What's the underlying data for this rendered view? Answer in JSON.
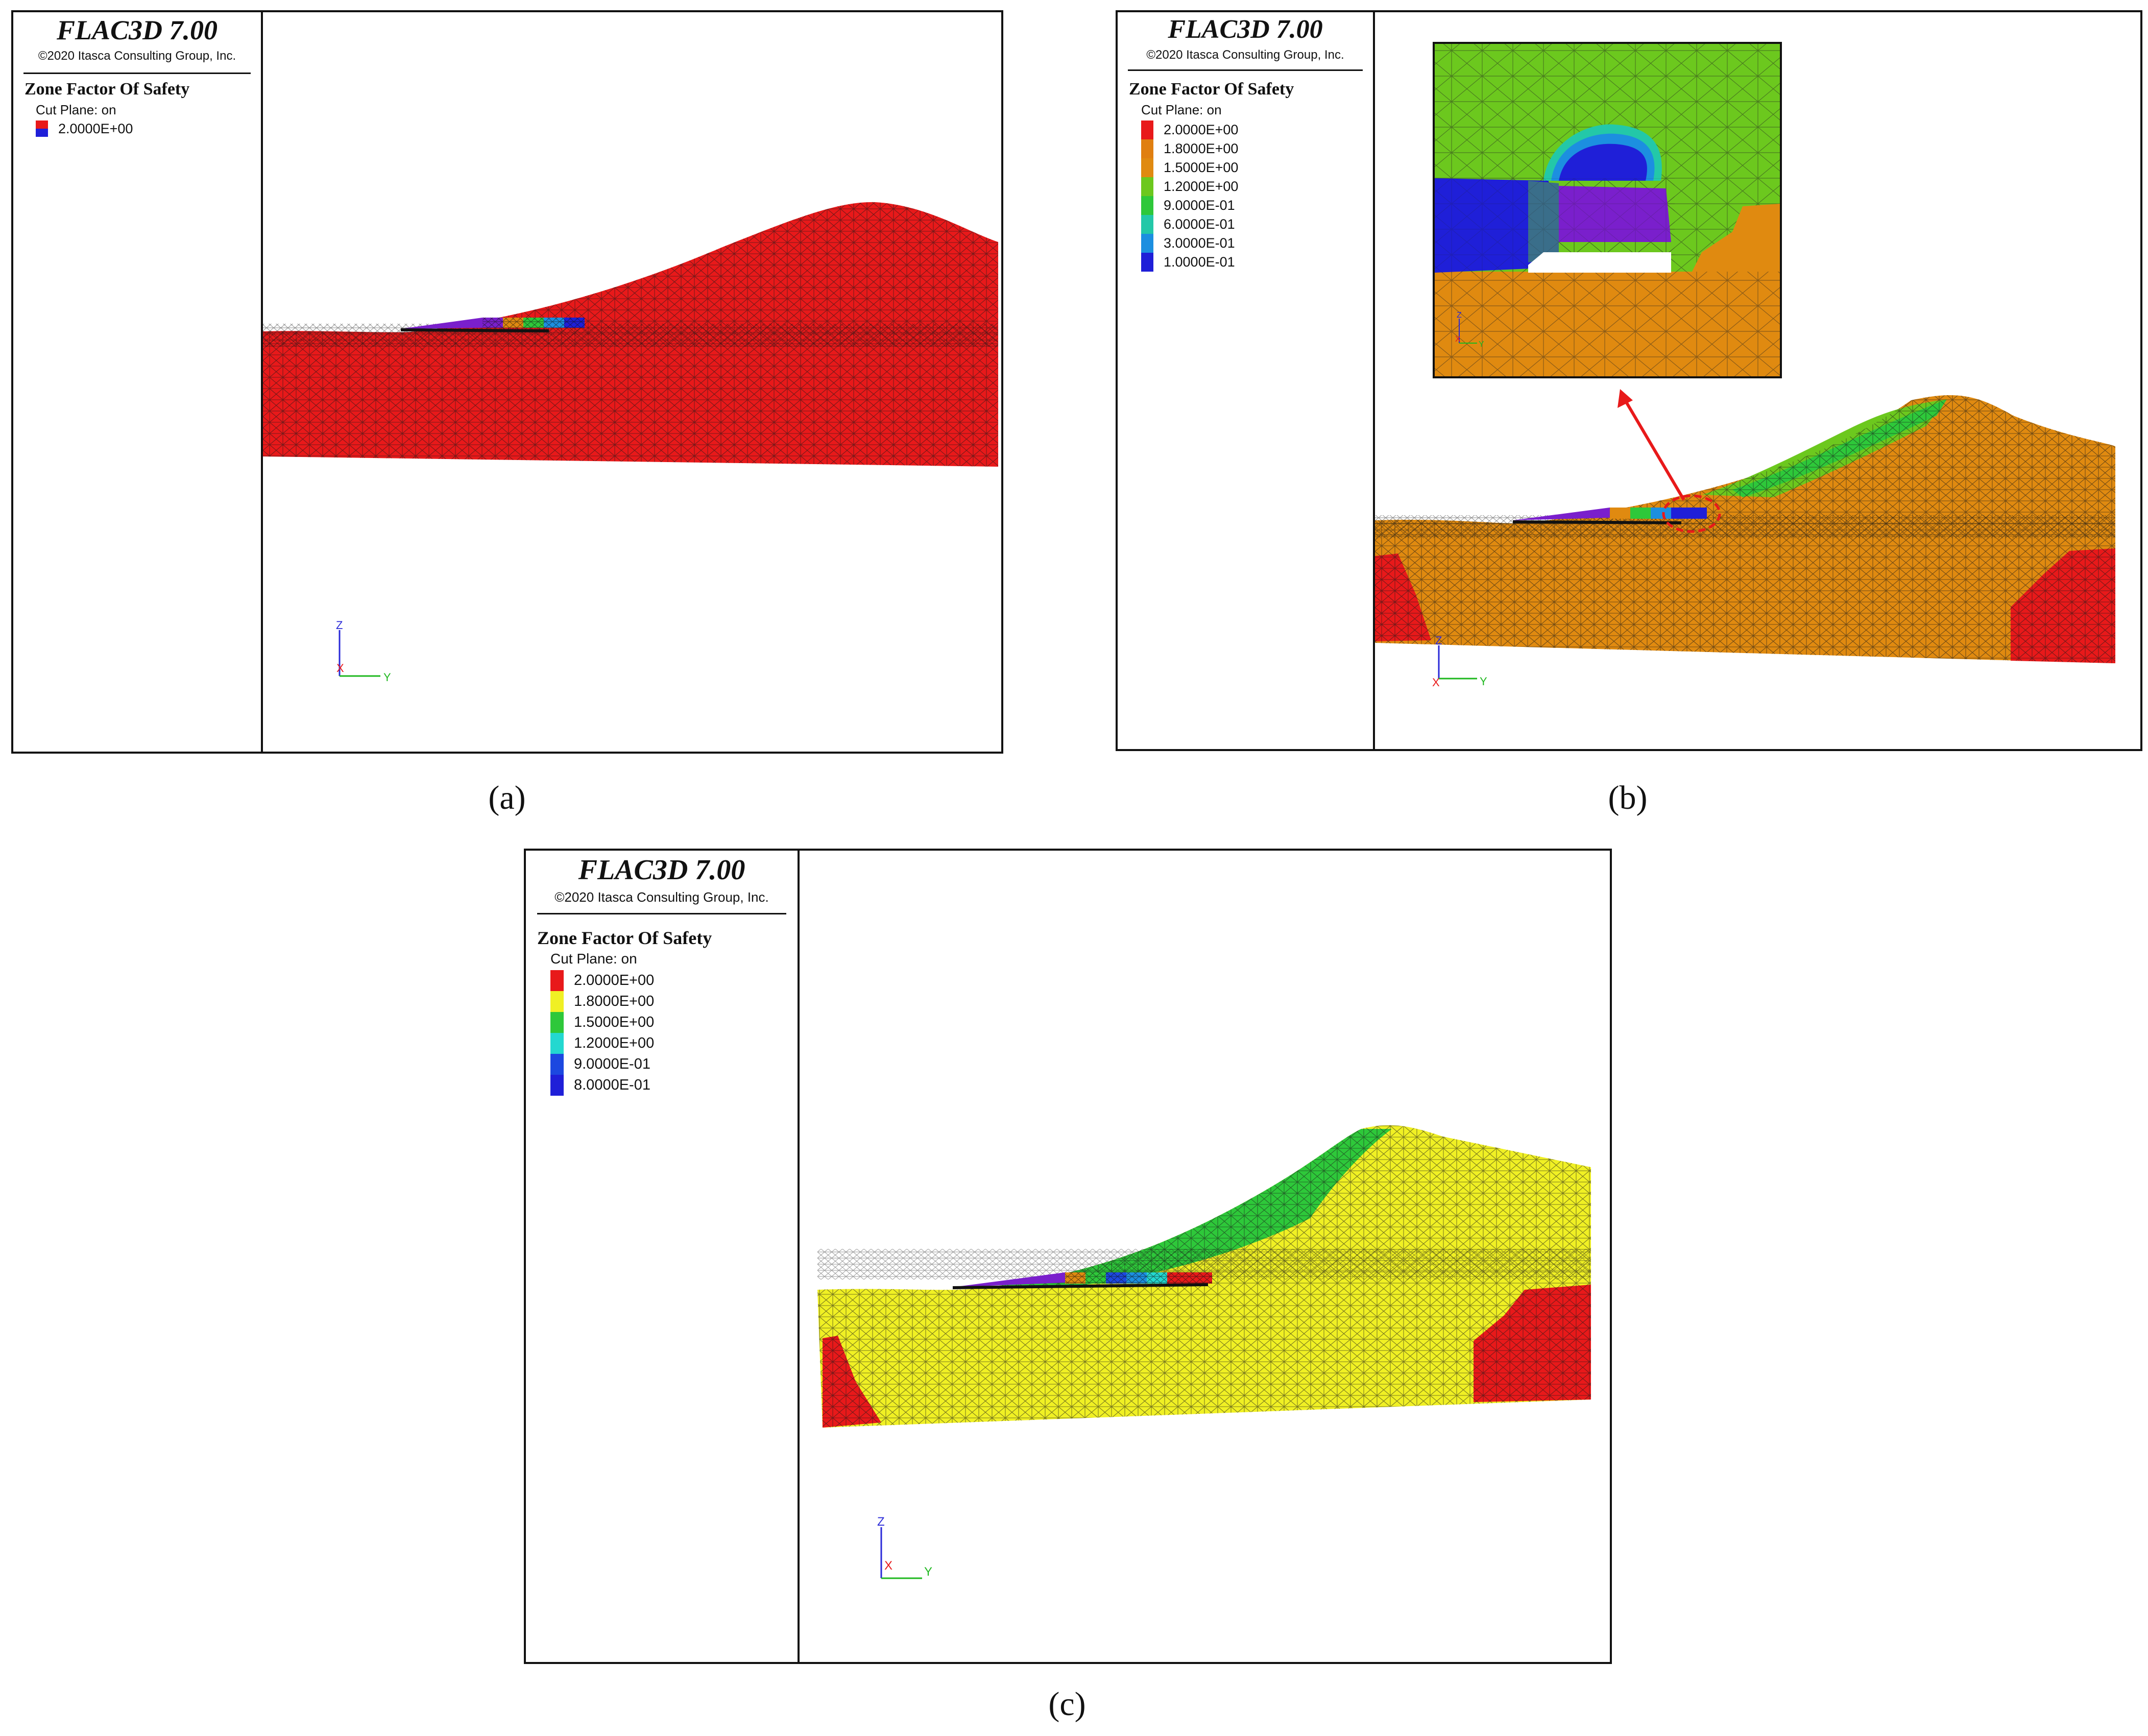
{
  "panels": [
    {
      "id": "a",
      "caption": "(a)",
      "app_title": "FLAC3D 7.00",
      "copyright": "©2020 Itasca Consulting Group, Inc.",
      "plot_title": "Zone Factor Of Safety",
      "cut_plane": "Cut Plane: on",
      "legend": [
        {
          "label": "2.0000E+00",
          "color": "#e8191a",
          "color2": "#1f1fd8"
        }
      ],
      "axes": {
        "z": "Z",
        "x": "X",
        "y": "Y"
      }
    },
    {
      "id": "b",
      "caption": "(b)",
      "app_title": "FLAC3D 7.00",
      "copyright": "©2020 Itasca Consulting Group, Inc.",
      "plot_title": "Zone Factor Of Safety",
      "cut_plane": "Cut Plane: on",
      "legend": [
        {
          "label": "2.0000E+00",
          "color": "#e8191a"
        },
        {
          "label": "1.8000E+00",
          "color": "#e07f10"
        },
        {
          "label": "1.5000E+00",
          "color": "#e08a10"
        },
        {
          "label": "1.2000E+00",
          "color": "#6cc81e"
        },
        {
          "label": "9.0000E-01",
          "color": "#2ec83a"
        },
        {
          "label": "6.0000E-01",
          "color": "#23c8a8"
        },
        {
          "label": "3.0000E-01",
          "color": "#1c8fe0"
        },
        {
          "label": "1.0000E-01",
          "color": "#1f1fd8"
        }
      ],
      "axes": {
        "z": "Z",
        "x": "X",
        "y": "Y"
      },
      "inset_axes": {
        "z": "Z",
        "x": "X",
        "y": "Y"
      }
    },
    {
      "id": "c",
      "caption": "(c)",
      "app_title": "FLAC3D 7.00",
      "copyright": "©2020 Itasca Consulting Group, Inc.",
      "plot_title": "Zone Factor Of Safety",
      "cut_plane": "Cut Plane: on",
      "legend": [
        {
          "label": "2.0000E+00",
          "color": "#e8191a"
        },
        {
          "label": "1.8000E+00",
          "color": "#f0f024"
        },
        {
          "label": "1.5000E+00",
          "color": "#2ec83a"
        },
        {
          "label": "1.2000E+00",
          "color": "#23d8d0"
        },
        {
          "label": "9.0000E-01",
          "color": "#1c48e0"
        },
        {
          "label": "8.0000E-01",
          "color": "#1f1fd8"
        }
      ],
      "axes": {
        "z": "Z",
        "x": "X",
        "y": "Y"
      }
    }
  ]
}
